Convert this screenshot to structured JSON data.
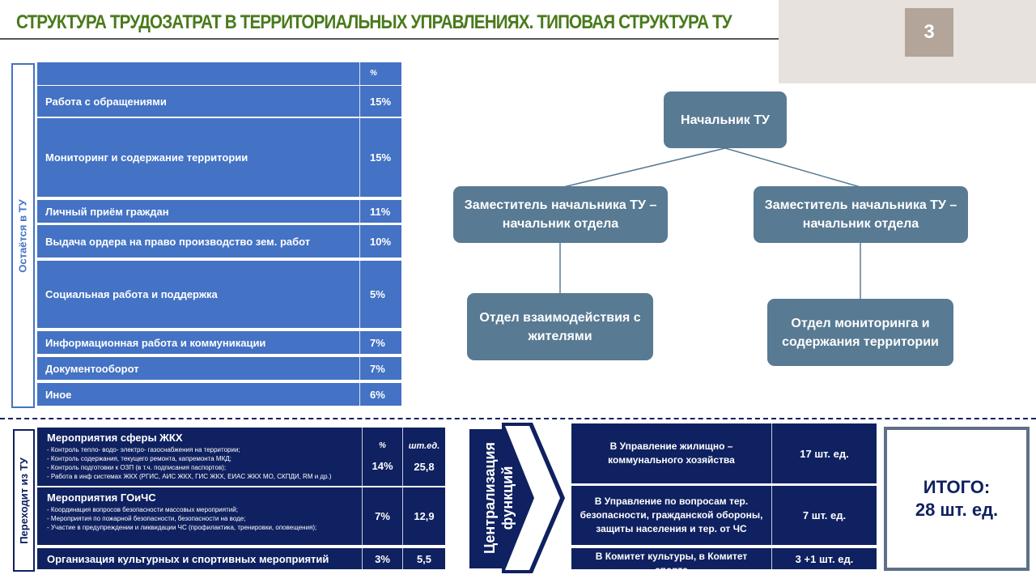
{
  "title": "СТРУКТУРА ТРУДОЗАТРАТ В ТЕРРИТОРИАЛЬНЫХ УПРАВЛЕНИЯХ. ТИПОВАЯ СТРУКТУРА ТУ",
  "page_number": "3",
  "stays": {
    "label": "Остаётся в ТУ",
    "header_pct": "%",
    "rows": [
      {
        "name": "Работа с обращениями",
        "pct": "15%"
      },
      {
        "name": "Мониторинг и содержание территории",
        "pct": "15%"
      },
      {
        "name": "Личный приём граждан",
        "pct": "11%"
      },
      {
        "name": "Выдача ордера на право производство зем. работ",
        "pct": "10%"
      },
      {
        "name": "Социальная работа и поддержка",
        "pct": "5%"
      },
      {
        "name": "Информационная работа и коммуникации",
        "pct": "7%"
      },
      {
        "name": "Документооборот",
        "pct": "7%"
      },
      {
        "name": "Иное",
        "pct": "6%"
      }
    ]
  },
  "org": {
    "head": "Начальник ТУ",
    "deputy_left": "Заместитель начальника ТУ – начальник отдела",
    "deputy_right": "Заместитель начальника ТУ – начальник отдела",
    "dept_left": "Отдел взаимодействия с жителями",
    "dept_right": "Отдел мониторинга и содержания территории"
  },
  "leaves": {
    "label": "Переходит из ТУ",
    "header_pct": "%",
    "header_units": "шт.ед.",
    "rows": [
      {
        "title": "Мероприятия сферы ЖКХ",
        "items": [
          "- Контроль тепло- водо- электро- газоснабжения на территории;",
          "- Контроль содержания, текущего ремонта, капремонта МКД;",
          "- Контроль подготовки к ОЗП (в т.ч. подписания паспортов);",
          "- Работа в инф системах ЖКХ (РГИС, АИС ЖКХ, ГИС ЖКХ,  ЕИАС ЖКХ МО, СКПДИ, RM и др.)"
        ],
        "pct": "14%",
        "units": "25,8"
      },
      {
        "title": "Мероприятия ГОиЧС",
        "items": [
          "- Координация вопросов безопасности массовых мероприятий;",
          "- Мероприятия по пожарной безопасности, безопасности на воде;",
          "- Участие в предупреждении и ликвидации ЧС (профилактика, тренировки, оповещения);"
        ],
        "pct": "7%",
        "units": "12,9"
      },
      {
        "title": "Организация культурных и спортивных  мероприятий",
        "items": [],
        "pct": "3%",
        "units": "5,5"
      }
    ]
  },
  "centralization": {
    "label_line1": "Централизация",
    "label_line2": "функций",
    "rows": [
      {
        "name": "В Управление жилищно – коммунального хозяйства",
        "units": "17 шт. ед."
      },
      {
        "name": "В Управление по вопросам тер. безопасности, гражданской обороны, защиты населения и тер. от ЧС",
        "units": "7 шт. ед."
      },
      {
        "name": "В Комитет культуры, в Комитет спорта",
        "units": "3 +1  шт. ед."
      }
    ]
  },
  "total": {
    "label": "ИТОГО:",
    "value": "28 шт. ед."
  },
  "colors": {
    "title_green": "#4a7a1c",
    "table_blue": "#4472c4",
    "navy": "#0f2160",
    "org_box": "#587a93"
  }
}
